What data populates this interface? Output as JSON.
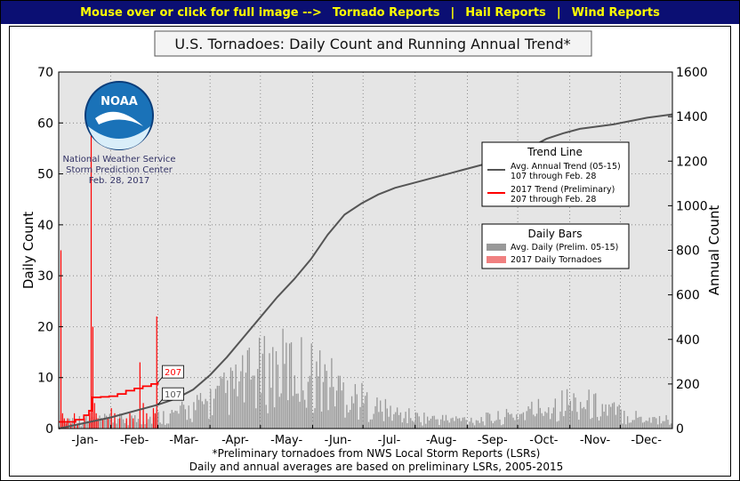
{
  "topbar": {
    "hint": "Mouse over or click for full image -->",
    "link1": "Tornado Reports",
    "link2": "Hail Reports",
    "link3": "Wind Reports",
    "sep": "|"
  },
  "logo": {
    "text": "NOAA",
    "line1": "National Weather Service",
    "line2": "Storm Prediction Center",
    "line3": "Feb. 28, 2017"
  },
  "footnote": {
    "line1": "*Preliminary tornadoes from NWS Local Storm Reports (LSRs)",
    "line2": "Daily and annual averages are based on preliminary LSRs, 2005-2015"
  },
  "chart_data": {
    "type": "bar",
    "title": "U.S. Tornadoes: Daily Count and Running Annual Trend*",
    "ylabel": "Daily Count",
    "y2label": "Annual Count",
    "ylim": [
      0,
      70
    ],
    "y2lim": [
      0,
      1600
    ],
    "yticks": [
      "0",
      "10",
      "20",
      "30",
      "40",
      "50",
      "60",
      "70"
    ],
    "y2ticks": [
      "0",
      "200",
      "400",
      "600",
      "800",
      "1000",
      "1200",
      "1400",
      "1600"
    ],
    "months": [
      "-Jan-",
      "-Feb-",
      "-Mar-",
      "-Apr-",
      "-May-",
      "-Jun-",
      "-Jul-",
      "-Aug-",
      "-Sep-",
      "-Oct-",
      "-Nov-",
      "-Dec-"
    ],
    "grid": true,
    "colors": {
      "avg_bar": "#999999",
      "current_bar": "#ff0000",
      "avg_line": "#555555",
      "current_line": "#ff0000",
      "plot_bg": "#e5e5e5"
    },
    "legend_trend": {
      "title": "Trend Line",
      "avg_label1": "Avg. Annual Trend (05-15)",
      "avg_label2": "107 through Feb. 28",
      "cur_label1": "2017 Trend (Preliminary)",
      "cur_label2": "207 through Feb. 28"
    },
    "legend_bars": {
      "title": "Daily Bars",
      "avg_label": "Avg. Daily (Prelim. 05-15)",
      "cur_label": "2017 Daily Tornadoes"
    },
    "annotation_current": "207",
    "annotation_avg": "107",
    "avg_trend": {
      "days": [
        0,
        31,
        59,
        70,
        80,
        90,
        100,
        110,
        120,
        130,
        140,
        150,
        160,
        170,
        180,
        190,
        200,
        210,
        220,
        230,
        240,
        250,
        260,
        270,
        280,
        290,
        300,
        310,
        320,
        330,
        340,
        350,
        365
      ],
      "values": [
        0,
        50,
        107,
        135,
        175,
        240,
        320,
        410,
        500,
        590,
        670,
        760,
        870,
        960,
        1010,
        1050,
        1080,
        1100,
        1120,
        1140,
        1160,
        1180,
        1200,
        1225,
        1260,
        1300,
        1325,
        1345,
        1355,
        1365,
        1380,
        1395,
        1410
      ]
    },
    "current_trend": {
      "days": [
        0,
        10,
        15,
        18,
        20,
        25,
        30,
        35,
        40,
        45,
        50,
        55,
        59
      ],
      "values": [
        30,
        40,
        60,
        80,
        140,
        142,
        145,
        155,
        170,
        180,
        190,
        200,
        207
      ]
    },
    "current_daily": {
      "days": [
        1,
        2,
        3,
        4,
        5,
        7,
        9,
        11,
        15,
        18,
        19,
        20,
        21,
        22,
        23,
        26,
        29,
        31,
        33,
        36,
        40,
        42,
        44,
        48,
        50,
        52,
        56,
        57,
        58
      ],
      "values": [
        35,
        3,
        2,
        1,
        2,
        1,
        3,
        1,
        2,
        3,
        65,
        20,
        5,
        3,
        2,
        2,
        2,
        4,
        3,
        2,
        2,
        3,
        2,
        13,
        5,
        3,
        4,
        3,
        22
      ]
    }
  }
}
